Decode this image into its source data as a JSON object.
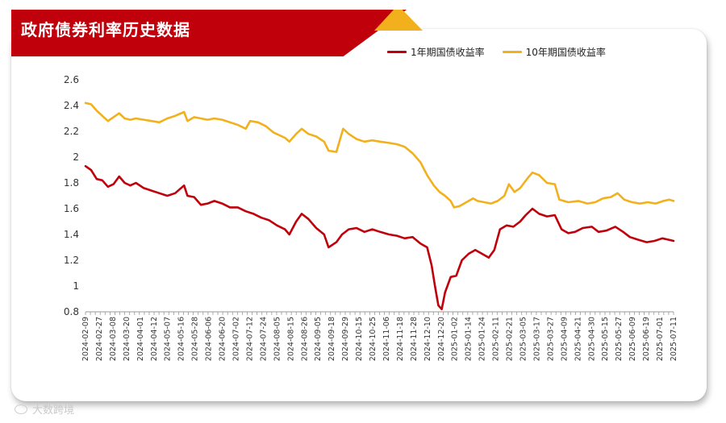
{
  "header": {
    "title": "政府债券利率历史数据",
    "accent_color": "#c0000a",
    "accent_secondary": "#f2b11c"
  },
  "watermark": {
    "text": "大数跨境"
  },
  "chart_data": {
    "type": "line",
    "title": "政府债券利率历史数据",
    "xlabel": "",
    "ylabel": "",
    "ylim": [
      0.8,
      2.6
    ],
    "yticks": [
      0.8,
      1,
      1.2,
      1.4,
      1.6,
      1.8,
      2,
      2.2,
      2.4,
      2.6
    ],
    "ytick_labels": [
      "0.8",
      "1",
      "1.2",
      "1.4",
      "1.6",
      "1.8",
      "2",
      "2.2",
      "2.4",
      "2.6"
    ],
    "xlim": [
      "2024-02-09",
      "2025-07-18"
    ],
    "xtick_labels": [
      "2024-02-09",
      "2024-02-27",
      "2024-03-08",
      "2024-03-20",
      "2024-04-01",
      "2024-04-12",
      "2024-05-07",
      "2024-05-16",
      "2024-05-28",
      "2024-06-06",
      "2024-06-20",
      "2024-07-02",
      "2024-07-12",
      "2024-07-24",
      "2024-08-05",
      "2024-08-15",
      "2024-08-26",
      "2024-09-05",
      "2024-09-18",
      "2024-09-29",
      "2024-10-15",
      "2024-10-25",
      "2024-11-06",
      "2024-11-18",
      "2024-11-28",
      "2024-12-10",
      "2024-12-20",
      "2025-01-02",
      "2025-01-14",
      "2025-01-24",
      "2025-02-11",
      "2025-02-21",
      "2025-03-05",
      "2025-03-17",
      "2025-03-27",
      "2025-04-09",
      "2025-04-21",
      "2025-04-30",
      "2025-05-15",
      "2025-05-27",
      "2025-06-09",
      "2025-06-19",
      "2025-07-01",
      "2025-07-11"
    ],
    "grid": false,
    "legend_position": "top-right",
    "series": [
      {
        "name": "1年期国债收益率",
        "color": "#c0000a",
        "points": [
          [
            "2024-02-09",
            1.93
          ],
          [
            "2024-02-14",
            1.9
          ],
          [
            "2024-02-19",
            1.83
          ],
          [
            "2024-02-24",
            1.82
          ],
          [
            "2024-02-29",
            1.77
          ],
          [
            "2024-03-05",
            1.79
          ],
          [
            "2024-03-10",
            1.85
          ],
          [
            "2024-03-15",
            1.8
          ],
          [
            "2024-03-20",
            1.78
          ],
          [
            "2024-03-25",
            1.8
          ],
          [
            "2024-04-01",
            1.76
          ],
          [
            "2024-04-08",
            1.74
          ],
          [
            "2024-04-15",
            1.72
          ],
          [
            "2024-04-22",
            1.7
          ],
          [
            "2024-04-29",
            1.72
          ],
          [
            "2024-05-07",
            1.78
          ],
          [
            "2024-05-10",
            1.7
          ],
          [
            "2024-05-16",
            1.69
          ],
          [
            "2024-05-22",
            1.63
          ],
          [
            "2024-05-28",
            1.64
          ],
          [
            "2024-06-03",
            1.66
          ],
          [
            "2024-06-10",
            1.64
          ],
          [
            "2024-06-17",
            1.61
          ],
          [
            "2024-06-24",
            1.61
          ],
          [
            "2024-07-01",
            1.58
          ],
          [
            "2024-07-08",
            1.56
          ],
          [
            "2024-07-15",
            1.53
          ],
          [
            "2024-07-22",
            1.51
          ],
          [
            "2024-07-29",
            1.47
          ],
          [
            "2024-08-05",
            1.44
          ],
          [
            "2024-08-09",
            1.4
          ],
          [
            "2024-08-15",
            1.5
          ],
          [
            "2024-08-20",
            1.56
          ],
          [
            "2024-08-26",
            1.52
          ],
          [
            "2024-09-02",
            1.45
          ],
          [
            "2024-09-09",
            1.4
          ],
          [
            "2024-09-13",
            1.3
          ],
          [
            "2024-09-20",
            1.34
          ],
          [
            "2024-09-25",
            1.4
          ],
          [
            "2024-10-01",
            1.44
          ],
          [
            "2024-10-08",
            1.45
          ],
          [
            "2024-10-15",
            1.42
          ],
          [
            "2024-10-22",
            1.44
          ],
          [
            "2024-10-29",
            1.42
          ],
          [
            "2024-11-06",
            1.4
          ],
          [
            "2024-11-13",
            1.39
          ],
          [
            "2024-11-20",
            1.37
          ],
          [
            "2024-11-27",
            1.38
          ],
          [
            "2024-12-04",
            1.33
          ],
          [
            "2024-12-10",
            1.3
          ],
          [
            "2024-12-14",
            1.16
          ],
          [
            "2024-12-17",
            1.0
          ],
          [
            "2024-12-20",
            0.85
          ],
          [
            "2024-12-23",
            0.82
          ],
          [
            "2024-12-26",
            0.95
          ],
          [
            "2024-12-31",
            1.07
          ],
          [
            "2025-01-05",
            1.08
          ],
          [
            "2025-01-10",
            1.2
          ],
          [
            "2025-01-16",
            1.25
          ],
          [
            "2025-01-22",
            1.28
          ],
          [
            "2025-01-28",
            1.25
          ],
          [
            "2025-02-03",
            1.22
          ],
          [
            "2025-02-08",
            1.28
          ],
          [
            "2025-02-13",
            1.44
          ],
          [
            "2025-02-19",
            1.47
          ],
          [
            "2025-02-25",
            1.46
          ],
          [
            "2025-03-03",
            1.5
          ],
          [
            "2025-03-08",
            1.55
          ],
          [
            "2025-03-14",
            1.6
          ],
          [
            "2025-03-20",
            1.56
          ],
          [
            "2025-03-27",
            1.54
          ],
          [
            "2025-04-03",
            1.55
          ],
          [
            "2025-04-09",
            1.44
          ],
          [
            "2025-04-15",
            1.41
          ],
          [
            "2025-04-21",
            1.42
          ],
          [
            "2025-04-28",
            1.45
          ],
          [
            "2025-05-06",
            1.46
          ],
          [
            "2025-05-12",
            1.42
          ],
          [
            "2025-05-19",
            1.43
          ],
          [
            "2025-05-27",
            1.46
          ],
          [
            "2025-06-03",
            1.42
          ],
          [
            "2025-06-09",
            1.38
          ],
          [
            "2025-06-16",
            1.36
          ],
          [
            "2025-06-24",
            1.34
          ],
          [
            "2025-07-01",
            1.35
          ],
          [
            "2025-07-08",
            1.37
          ],
          [
            "2025-07-13",
            1.36
          ],
          [
            "2025-07-18",
            1.35
          ]
        ]
      },
      {
        "name": "10年期国债收益率",
        "color": "#f2b11c",
        "points": [
          [
            "2024-02-09",
            2.42
          ],
          [
            "2024-02-14",
            2.41
          ],
          [
            "2024-02-19",
            2.36
          ],
          [
            "2024-02-24",
            2.32
          ],
          [
            "2024-02-29",
            2.28
          ],
          [
            "2024-03-05",
            2.31
          ],
          [
            "2024-03-10",
            2.34
          ],
          [
            "2024-03-15",
            2.3
          ],
          [
            "2024-03-20",
            2.29
          ],
          [
            "2024-03-25",
            2.3
          ],
          [
            "2024-04-01",
            2.29
          ],
          [
            "2024-04-08",
            2.28
          ],
          [
            "2024-04-15",
            2.27
          ],
          [
            "2024-04-22",
            2.3
          ],
          [
            "2024-04-29",
            2.32
          ],
          [
            "2024-05-07",
            2.35
          ],
          [
            "2024-05-10",
            2.28
          ],
          [
            "2024-05-16",
            2.31
          ],
          [
            "2024-05-22",
            2.3
          ],
          [
            "2024-05-28",
            2.29
          ],
          [
            "2024-06-03",
            2.3
          ],
          [
            "2024-06-10",
            2.29
          ],
          [
            "2024-06-17",
            2.27
          ],
          [
            "2024-06-24",
            2.25
          ],
          [
            "2024-07-01",
            2.22
          ],
          [
            "2024-07-05",
            2.28
          ],
          [
            "2024-07-12",
            2.27
          ],
          [
            "2024-07-19",
            2.24
          ],
          [
            "2024-07-26",
            2.19
          ],
          [
            "2024-08-05",
            2.15
          ],
          [
            "2024-08-09",
            2.12
          ],
          [
            "2024-08-15",
            2.18
          ],
          [
            "2024-08-20",
            2.22
          ],
          [
            "2024-08-26",
            2.18
          ],
          [
            "2024-09-02",
            2.16
          ],
          [
            "2024-09-09",
            2.12
          ],
          [
            "2024-09-13",
            2.05
          ],
          [
            "2024-09-20",
            2.04
          ],
          [
            "2024-09-26",
            2.22
          ],
          [
            "2024-10-01",
            2.18
          ],
          [
            "2024-10-08",
            2.14
          ],
          [
            "2024-10-15",
            2.12
          ],
          [
            "2024-10-22",
            2.13
          ],
          [
            "2024-10-29",
            2.12
          ],
          [
            "2024-11-06",
            2.11
          ],
          [
            "2024-11-13",
            2.1
          ],
          [
            "2024-11-20",
            2.08
          ],
          [
            "2024-11-27",
            2.03
          ],
          [
            "2024-12-04",
            1.96
          ],
          [
            "2024-12-10",
            1.86
          ],
          [
            "2024-12-16",
            1.78
          ],
          [
            "2024-12-21",
            1.73
          ],
          [
            "2024-12-26",
            1.7
          ],
          [
            "2024-12-31",
            1.66
          ],
          [
            "2025-01-03",
            1.61
          ],
          [
            "2025-01-08",
            1.62
          ],
          [
            "2025-01-14",
            1.65
          ],
          [
            "2025-01-20",
            1.68
          ],
          [
            "2025-01-24",
            1.66
          ],
          [
            "2025-01-30",
            1.65
          ],
          [
            "2025-02-05",
            1.64
          ],
          [
            "2025-02-11",
            1.66
          ],
          [
            "2025-02-17",
            1.7
          ],
          [
            "2025-02-21",
            1.79
          ],
          [
            "2025-02-26",
            1.73
          ],
          [
            "2025-03-03",
            1.76
          ],
          [
            "2025-03-10",
            1.84
          ],
          [
            "2025-03-14",
            1.88
          ],
          [
            "2025-03-20",
            1.86
          ],
          [
            "2025-03-27",
            1.8
          ],
          [
            "2025-04-03",
            1.79
          ],
          [
            "2025-04-07",
            1.67
          ],
          [
            "2025-04-15",
            1.65
          ],
          [
            "2025-04-24",
            1.66
          ],
          [
            "2025-05-02",
            1.64
          ],
          [
            "2025-05-09",
            1.65
          ],
          [
            "2025-05-16",
            1.68
          ],
          [
            "2025-05-23",
            1.69
          ],
          [
            "2025-05-29",
            1.72
          ],
          [
            "2025-06-04",
            1.67
          ],
          [
            "2025-06-11",
            1.65
          ],
          [
            "2025-06-18",
            1.64
          ],
          [
            "2025-06-25",
            1.65
          ],
          [
            "2025-07-02",
            1.64
          ],
          [
            "2025-07-09",
            1.66
          ],
          [
            "2025-07-14",
            1.67
          ],
          [
            "2025-07-18",
            1.66
          ]
        ]
      }
    ]
  }
}
